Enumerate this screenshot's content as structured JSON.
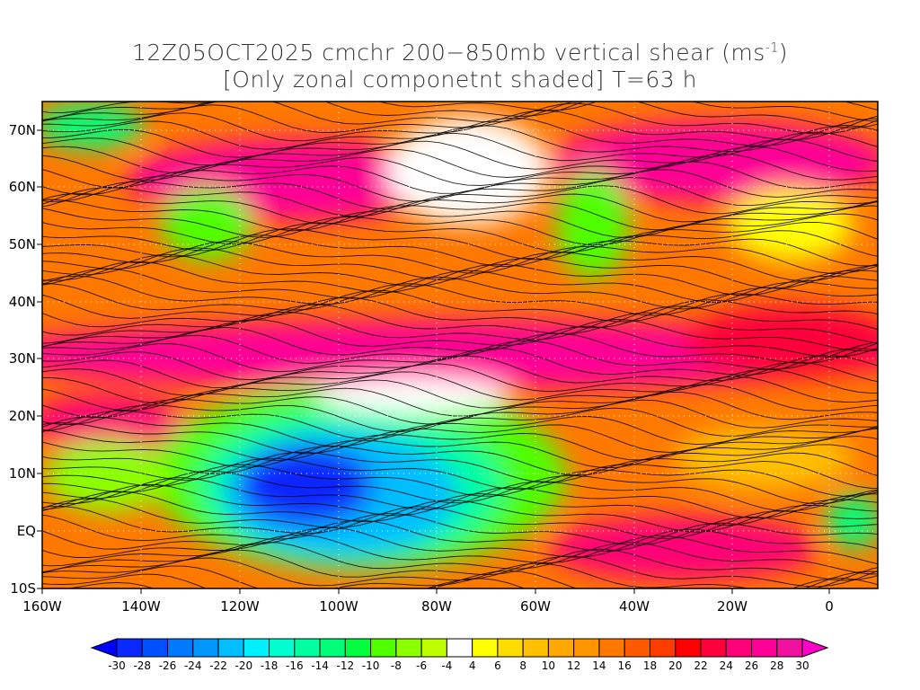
{
  "title": {
    "line1": "12Z05OCT2025 cmchr 200−850mb vertical shear (ms",
    "line1_sup": "-1",
    "line1_end": ")",
    "line2": "[Only zonal componetnt shaded] T=63 h"
  },
  "axes": {
    "lon_labels": [
      "160W",
      "140W",
      "120W",
      "100W",
      "80W",
      "60W",
      "40W",
      "20W",
      "0"
    ],
    "lat_labels": [
      "70N",
      "60N",
      "50N",
      "40N",
      "30N",
      "20N",
      "10N",
      "EQ",
      "10S"
    ]
  },
  "colorbar": {
    "labels": [
      "-30",
      "-28",
      "-26",
      "-24",
      "-22",
      "-20",
      "-18",
      "-16",
      "-14",
      "-12",
      "-10",
      "-8",
      "-6",
      "-4",
      "4",
      "6",
      "8",
      "10",
      "12",
      "14",
      "16",
      "18",
      "20",
      "22",
      "24",
      "26",
      "28",
      "30"
    ],
    "colors": [
      "#0a28ff",
      "#0050ff",
      "#0078ff",
      "#0096ff",
      "#00beff",
      "#00f0ff",
      "#00ffd0",
      "#00ffa0",
      "#00ff78",
      "#00ff40",
      "#50ff00",
      "#8cff00",
      "#beff00",
      "#ffffff",
      "#ffff00",
      "#ffdc00",
      "#ffc000",
      "#ffa800",
      "#ff9600",
      "#ff7800",
      "#ff5a00",
      "#ff3c00",
      "#ff0000",
      "#ff003c",
      "#ff0078",
      "#ff0096",
      "#f010a0"
    ],
    "under_color": "#0000ff",
    "over_color": "#ff00c8"
  }
}
